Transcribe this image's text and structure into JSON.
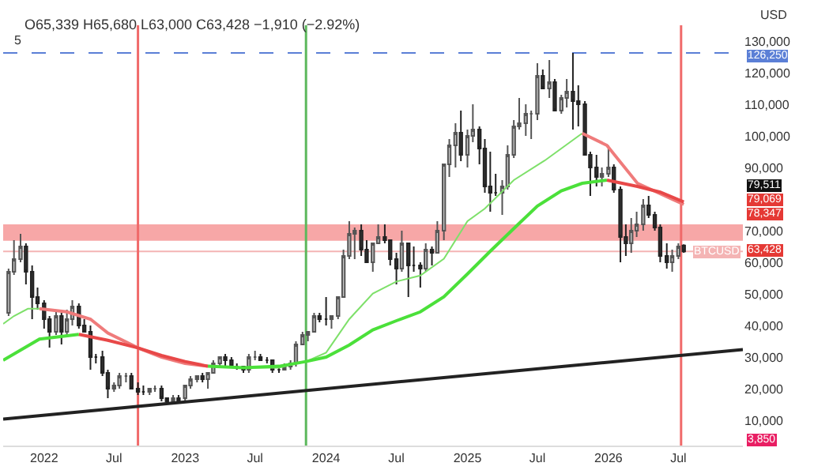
{
  "chart_data": {
    "type": "candlestick",
    "title": "O65,339 H65,680 L63,000 C63,428 −1,910 (−2.92%)",
    "x": [
      "2021-10-01",
      "2021-10-15",
      "2021-11-01",
      "2021-11-15",
      "2021-12-01",
      "2021-12-15",
      "2022-01-01",
      "2022-01-15",
      "2022-02-01",
      "2022-02-15",
      "2022-03-01",
      "2022-03-15",
      "2022-04-01",
      "2022-04-15",
      "2022-05-01",
      "2022-05-15",
      "2022-06-01",
      "2022-06-15",
      "2022-07-01",
      "2022-07-15",
      "2022-08-01",
      "2022-08-15",
      "2022-09-01",
      "2022-09-15",
      "2022-10-01",
      "2022-10-15",
      "2022-11-01",
      "2022-11-15",
      "2022-12-01",
      "2022-12-15",
      "2023-01-01",
      "2023-01-15",
      "2023-02-01",
      "2023-02-15",
      "2023-03-01",
      "2023-03-15",
      "2023-04-01",
      "2023-04-15",
      "2023-05-01",
      "2023-05-15",
      "2023-06-01",
      "2023-06-15",
      "2023-07-01",
      "2023-07-15",
      "2023-08-01",
      "2023-08-15",
      "2023-09-01",
      "2023-09-15",
      "2023-10-01",
      "2023-10-15",
      "2023-11-01",
      "2023-11-15",
      "2023-12-01",
      "2023-12-15",
      "2024-01-01",
      "2024-01-15",
      "2024-02-01",
      "2024-02-15",
      "2024-03-01",
      "2024-03-15",
      "2024-04-01",
      "2024-04-15",
      "2024-05-01",
      "2024-05-15",
      "2024-06-01",
      "2024-06-15",
      "2024-07-01",
      "2024-07-15",
      "2024-08-01",
      "2024-08-15",
      "2024-09-01",
      "2024-09-15",
      "2024-10-01",
      "2024-10-15",
      "2024-11-01",
      "2024-11-15",
      "2024-12-01",
      "2024-12-15",
      "2025-01-01",
      "2025-01-15",
      "2025-02-01",
      "2025-02-15",
      "2025-03-01",
      "2025-03-15",
      "2025-04-01",
      "2025-04-15",
      "2025-05-01",
      "2025-05-15",
      "2025-06-01",
      "2025-06-15",
      "2025-07-01",
      "2025-07-15",
      "2025-08-01",
      "2025-08-15",
      "2025-09-01",
      "2025-09-15",
      "2025-10-01",
      "2025-10-15",
      "2025-11-01",
      "2025-11-15",
      "2025-12-01",
      "2025-12-15",
      "2026-01-01",
      "2026-01-15",
      "2026-02-01",
      "2026-02-15",
      "2026-03-01",
      "2026-03-15",
      "2026-04-01",
      "2026-04-15",
      "2026-05-01",
      "2026-05-15",
      "2026-06-01",
      "2026-06-15",
      "2026-07-01",
      "2026-07-15"
    ],
    "ohlc": [
      [
        44000,
        58000,
        43000,
        57000
      ],
      [
        57000,
        67000,
        56000,
        61000
      ],
      [
        61000,
        69000,
        60000,
        65000
      ],
      [
        65000,
        66000,
        53000,
        57000
      ],
      [
        57000,
        59000,
        42000,
        49000
      ],
      [
        49000,
        52000,
        45000,
        47000
      ],
      [
        47000,
        48000,
        39000,
        42000
      ],
      [
        42000,
        43000,
        33000,
        38000
      ],
      [
        38000,
        45000,
        37000,
        43000
      ],
      [
        43000,
        44000,
        34000,
        38000
      ],
      [
        38000,
        45000,
        37000,
        42000
      ],
      [
        42000,
        48000,
        40000,
        46000
      ],
      [
        46000,
        47000,
        39000,
        40000
      ],
      [
        40000,
        42000,
        38000,
        38000
      ],
      [
        38000,
        40000,
        26000,
        30000
      ],
      [
        30000,
        31000,
        28000,
        30000
      ],
      [
        30000,
        32000,
        24000,
        25000
      ],
      [
        25000,
        26000,
        17000,
        20000
      ],
      [
        20000,
        22000,
        19000,
        21000
      ],
      [
        21000,
        25000,
        20000,
        24000
      ],
      [
        24000,
        25000,
        22000,
        24000
      ],
      [
        24000,
        25000,
        20000,
        20000
      ],
      [
        20000,
        22000,
        18000,
        19000
      ],
      [
        19000,
        21000,
        18000,
        19000
      ],
      [
        19000,
        20000,
        18000,
        20000
      ],
      [
        20000,
        21000,
        19000,
        20000
      ],
      [
        20000,
        21000,
        16000,
        17000
      ],
      [
        17000,
        17000,
        16000,
        16000
      ],
      [
        16000,
        18000,
        16000,
        17000
      ],
      [
        17000,
        18000,
        16000,
        16000
      ],
      [
        17000,
        21000,
        16000,
        21000
      ],
      [
        21000,
        24000,
        20000,
        23000
      ],
      [
        23000,
        24000,
        22000,
        24000
      ],
      [
        24000,
        25000,
        22000,
        23000
      ],
      [
        23000,
        25000,
        20000,
        25000
      ],
      [
        25000,
        29000,
        25000,
        28000
      ],
      [
        28000,
        30000,
        27000,
        30000
      ],
      [
        30000,
        31000,
        27000,
        29000
      ],
      [
        29000,
        30000,
        27000,
        27000
      ],
      [
        27000,
        28000,
        26000,
        27000
      ],
      [
        27000,
        27000,
        25000,
        26000
      ],
      [
        26000,
        31000,
        25000,
        30000
      ],
      [
        30000,
        32000,
        29000,
        30000
      ],
      [
        30000,
        31000,
        29000,
        29000
      ],
      [
        29000,
        30000,
        28000,
        29000
      ],
      [
        29000,
        29000,
        25000,
        26000
      ],
      [
        26000,
        27000,
        25000,
        26000
      ],
      [
        26000,
        28000,
        26000,
        27000
      ],
      [
        27000,
        29000,
        26000,
        28000
      ],
      [
        28000,
        35000,
        27000,
        34000
      ],
      [
        34000,
        38000,
        34000,
        37000
      ],
      [
        37000,
        38000,
        35000,
        38000
      ],
      [
        38000,
        44000,
        38000,
        43000
      ],
      [
        43000,
        44000,
        41000,
        42000
      ],
      [
        42000,
        49000,
        40000,
        42000
      ],
      [
        42000,
        43000,
        39000,
        43000
      ],
      [
        43000,
        49000,
        42000,
        49000
      ],
      [
        49000,
        64000,
        49000,
        62000
      ],
      [
        62000,
        73000,
        61000,
        69000
      ],
      [
        69000,
        71000,
        61000,
        70000
      ],
      [
        70000,
        72000,
        62000,
        64000
      ],
      [
        64000,
        67000,
        60000,
        60000
      ],
      [
        60000,
        66000,
        57000,
        66000
      ],
      [
        66000,
        72000,
        66000,
        68000
      ],
      [
        68000,
        72000,
        66000,
        67000
      ],
      [
        67000,
        67000,
        59000,
        61000
      ],
      [
        61000,
        63000,
        53000,
        58000
      ],
      [
        58000,
        70000,
        57000,
        66000
      ],
      [
        66000,
        66000,
        49000,
        59000
      ],
      [
        59000,
        65000,
        57000,
        59000
      ],
      [
        59000,
        60000,
        52000,
        58000
      ],
      [
        58000,
        66000,
        57000,
        64000
      ],
      [
        64000,
        65000,
        59000,
        63000
      ],
      [
        63000,
        73000,
        63000,
        70000
      ],
      [
        70000,
        91000,
        67000,
        91000
      ],
      [
        91000,
        99000,
        87000,
        97000
      ],
      [
        97000,
        104000,
        90000,
        101000
      ],
      [
        101000,
        108000,
        92000,
        94000
      ],
      [
        94000,
        102000,
        90000,
        100000
      ],
      [
        100000,
        110000,
        98000,
        102000
      ],
      [
        102000,
        103000,
        91000,
        96000
      ],
      [
        96000,
        99000,
        82000,
        84000
      ],
      [
        84000,
        95000,
        76000,
        82000
      ],
      [
        82000,
        88000,
        81000,
        82000
      ],
      [
        82000,
        86000,
        75000,
        84000
      ],
      [
        84000,
        97000,
        83000,
        94000
      ],
      [
        94000,
        105000,
        93000,
        103000
      ],
      [
        103000,
        112000,
        102000,
        104000
      ],
      [
        104000,
        110000,
        100000,
        107000
      ],
      [
        107000,
        108000,
        99000,
        107000
      ],
      [
        107000,
        123000,
        105000,
        119000
      ],
      [
        119000,
        121000,
        115000,
        115000
      ],
      [
        115000,
        124000,
        112000,
        117000
      ],
      [
        117000,
        118000,
        108000,
        108000
      ],
      [
        108000,
        113000,
        107000,
        112000
      ],
      [
        112000,
        118000,
        109000,
        114000
      ],
      [
        114000,
        126250,
        102000,
        111000
      ],
      [
        111000,
        116000,
        103000,
        110000
      ],
      [
        110000,
        111000,
        94000,
        94000
      ],
      [
        94000,
        95000,
        81000,
        90000
      ],
      [
        90000,
        94000,
        84000,
        87000
      ],
      [
        87000,
        90000,
        84000,
        88000
      ],
      [
        88000,
        97000,
        87000,
        90000
      ],
      [
        90000,
        91000,
        82000,
        83000
      ],
      [
        83000,
        84000,
        60000,
        68000
      ],
      [
        68000,
        72000,
        62000,
        66000
      ],
      [
        66000,
        74000,
        63000,
        70000
      ],
      [
        70000,
        76000,
        68000,
        72000
      ],
      [
        72000,
        80000,
        70000,
        78000
      ],
      [
        78000,
        81000,
        74000,
        75000
      ],
      [
        75000,
        76000,
        70000,
        71000
      ],
      [
        71000,
        72000,
        60000,
        62000
      ],
      [
        62000,
        66000,
        58000,
        60000
      ],
      [
        60000,
        64000,
        57000,
        62000
      ],
      [
        62000,
        66000,
        61000,
        65000
      ],
      [
        65339,
        65680,
        63000,
        63428
      ]
    ],
    "series": [
      {
        "type": "line",
        "color": "#7ee06a",
        "x": [
          "2021-09-17",
          "2021-10-15",
          "2021-11-20",
          "2021-12-20"
        ],
        "values": [
          40500,
          43000,
          45300,
          45300
        ]
      },
      {
        "type": "line",
        "color": "#ef7b7b",
        "x": [
          "2021-12-20",
          "2022-03-01",
          "2022-05-01",
          "2022-06-15",
          "2022-09-01",
          "2022-11-01",
          "2023-01-01",
          "2023-03-01"
        ],
        "values": [
          45300,
          44300,
          42000,
          37600,
          32900,
          30000,
          28000,
          27100
        ]
      },
      {
        "type": "line",
        "color": "#7ee06a",
        "x": [
          "2023-03-01",
          "2023-06-01",
          "2023-09-01",
          "2023-11-10",
          "2024-01-01",
          "2024-03-01",
          "2024-05-01",
          "2024-07-01",
          "2024-09-01",
          "2024-11-01",
          "2025-01-01",
          "2025-02-15",
          "2025-05-01",
          "2025-07-20",
          "2025-10-25"
        ],
        "values": [
          27100,
          26600,
          26600,
          28600,
          31400,
          42000,
          50100,
          53900,
          55800,
          61100,
          73000,
          77000,
          86000,
          92200,
          100800
        ]
      },
      {
        "type": "line",
        "color": "#ef7b7b",
        "x": [
          "2025-10-25",
          "2025-12-28",
          "2026-03-17",
          "2026-07-15"
        ],
        "values": [
          100800,
          97000,
          85000,
          78300
        ]
      },
      {
        "type": "line",
        "color": "#4be03a",
        "x": [
          "2021-09-17",
          "2021-12-20",
          "2022-04-01"
        ],
        "values": [
          29000,
          35700,
          37200
        ]
      },
      {
        "type": "line",
        "color": "#e84848",
        "x": [
          "2022-04-01",
          "2022-06-15",
          "2022-09-01",
          "2022-11-01",
          "2023-01-01",
          "2023-03-01"
        ],
        "values": [
          37200,
          35300,
          32900,
          30500,
          28600,
          27100
        ]
      },
      {
        "type": "line",
        "color": "#4be03a",
        "x": [
          "2023-03-01",
          "2023-06-01",
          "2023-09-01",
          "2023-11-10",
          "2024-01-01",
          "2024-03-01",
          "2024-05-01",
          "2024-07-01",
          "2024-09-01",
          "2024-11-01",
          "2025-01-01",
          "2025-03-01",
          "2025-05-01",
          "2025-07-01",
          "2025-09-01",
          "2025-10-25",
          "2025-12-28"
        ],
        "values": [
          27100,
          26600,
          27100,
          28600,
          30000,
          33800,
          38600,
          41500,
          44300,
          49100,
          56300,
          63500,
          70700,
          77800,
          82600,
          85000,
          86000
        ]
      },
      {
        "type": "line",
        "color": "#e84848",
        "x": [
          "2025-12-28",
          "2026-03-17",
          "2026-05-15",
          "2026-07-15"
        ],
        "values": [
          86000,
          84000,
          82200,
          79100
        ]
      },
      {
        "type": "line",
        "color": "#222222",
        "x": [
          "2021-09-17",
          "2026-12-15"
        ],
        "values": [
          10400,
          32400
        ]
      }
    ],
    "xlim": [
      "2021-09-17",
      "2026-12-15"
    ],
    "xticks": [
      {
        "value": "2022-01-01",
        "label": "2022"
      },
      {
        "value": "2022-07-01",
        "label": "Jul"
      },
      {
        "value": "2023-01-01",
        "label": "2023"
      },
      {
        "value": "2023-07-01",
        "label": "Jul"
      },
      {
        "value": "2024-01-01",
        "label": "2024"
      },
      {
        "value": "2024-07-01",
        "label": "Jul"
      },
      {
        "value": "2025-01-01",
        "label": "2025"
      },
      {
        "value": "2025-07-01",
        "label": "Jul"
      },
      {
        "value": "2026-01-01",
        "label": "2026"
      },
      {
        "value": "2026-07-01",
        "label": "Jul"
      }
    ],
    "ylim": [
      2000,
      135000
    ],
    "yticks": [
      {
        "value": 10000,
        "label": "10,000"
      },
      {
        "value": 20000,
        "label": "20,000"
      },
      {
        "value": 30000,
        "label": "30,000"
      },
      {
        "value": 40000,
        "label": "40,000"
      },
      {
        "value": 50000,
        "label": "50,000"
      },
      {
        "value": 60000,
        "label": "60,000"
      },
      {
        "value": 70000,
        "label": "70,000"
      },
      {
        "value": 90000,
        "label": "90,000"
      },
      {
        "value": 100000,
        "label": "100,000"
      },
      {
        "value": 110000,
        "label": "110,000"
      },
      {
        "value": 120000,
        "label": "120,000"
      },
      {
        "value": 130000,
        "label": "130,000"
      }
    ],
    "grid": false,
    "ref_lines": [
      {
        "axis": "y",
        "value": 126250,
        "label": "126,250",
        "color": "#5b7fd6",
        "line_style": "dashed"
      },
      {
        "axis": "y",
        "value": 63428,
        "label": "BTCUSD",
        "color": "#f4b4b4",
        "line_style": "solid"
      },
      {
        "axis": "x",
        "value": "2022-09-01",
        "label": null,
        "color": "#f06a6a",
        "line_style": "solid"
      },
      {
        "axis": "x",
        "value": "2023-11-10",
        "label": null,
        "color": "#5cb85c",
        "line_style": "solid"
      },
      {
        "axis": "x",
        "value": "2026-07-08",
        "label": null,
        "color": "#f06a6a",
        "line_style": "solid"
      }
    ],
    "bands": [
      {
        "axis": "y",
        "from": 66800,
        "to": 72000,
        "label": null,
        "color": "#f48a8a"
      }
    ],
    "annotations": [
      "5",
      "USD",
      "63,428",
      "79,511",
      "79,069",
      "78,347",
      "3,850"
    ]
  }
}
